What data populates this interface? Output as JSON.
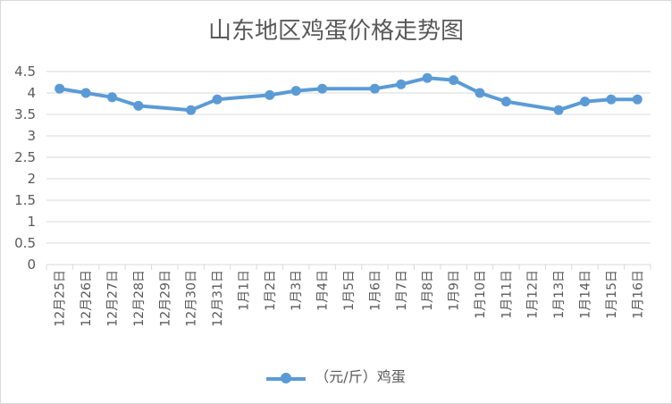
{
  "chart_data": {
    "type": "line",
    "title": "山东地区鸡蛋价格走势图",
    "categories": [
      "12月25日",
      "12月26日",
      "12月27日",
      "12月28日",
      "12月29日",
      "12月30日",
      "12月31日",
      "1月1日",
      "1月2日",
      "1月3日",
      "1月4日",
      "1月5日",
      "1月6日",
      "1月7日",
      "1月8日",
      "1月9日",
      "1月10日",
      "1月11日",
      "1月12日",
      "1月13日",
      "1月14日",
      "1月15日",
      "1月16日"
    ],
    "series": [
      {
        "name": "（元/斤）鸡蛋",
        "values": [
          4.1,
          4.0,
          3.9,
          3.7,
          null,
          3.6,
          3.85,
          null,
          3.95,
          4.05,
          4.1,
          null,
          4.1,
          4.2,
          4.35,
          4.3,
          4.0,
          3.8,
          null,
          3.6,
          3.8,
          3.85,
          3.85
        ],
        "color": "#5b9bd5"
      }
    ],
    "yticks": [
      "0",
      "0.5",
      "1",
      "1.5",
      "2",
      "2.5",
      "3",
      "3.5",
      "4",
      "4.5"
    ],
    "ylim": [
      0,
      4.5
    ],
    "grid": true,
    "legend_position": "bottom"
  }
}
